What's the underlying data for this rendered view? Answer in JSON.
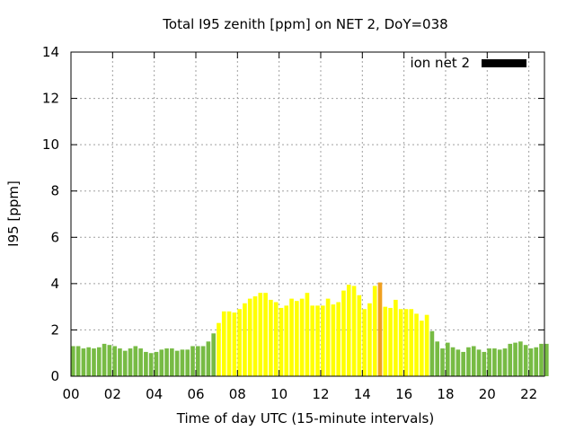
{
  "chart_data": {
    "type": "bar",
    "title": "Total I95 zenith [ppm] on NET 2, DoY=038",
    "xlabel": "Time of day UTC (15-minute intervals)",
    "ylabel": "I95 [ppm]",
    "xlim": [
      0,
      22.75
    ],
    "ylim": [
      0,
      14
    ],
    "x_ticks": [
      "00",
      "02",
      "04",
      "06",
      "08",
      "10",
      "12",
      "14",
      "16",
      "18",
      "20",
      "22"
    ],
    "y_ticks": [
      "0",
      "2",
      "4",
      "6",
      "8",
      "10",
      "12",
      "14"
    ],
    "grid": true,
    "legend": {
      "label": "ion net 2",
      "position": "top-right",
      "color": "#000000"
    },
    "colors": {
      "low": "#77bb44",
      "medium": "#ffff00",
      "high": "#f0a020"
    },
    "interval_hours": 0.25,
    "values": [
      1.3,
      1.3,
      1.2,
      1.25,
      1.2,
      1.25,
      1.4,
      1.35,
      1.3,
      1.2,
      1.1,
      1.2,
      1.3,
      1.2,
      1.05,
      1.0,
      1.05,
      1.15,
      1.2,
      1.2,
      1.1,
      1.15,
      1.15,
      1.3,
      1.3,
      1.3,
      1.5,
      1.85,
      2.3,
      2.8,
      2.8,
      2.75,
      2.9,
      3.15,
      3.35,
      3.45,
      3.6,
      3.6,
      3.3,
      3.2,
      2.95,
      3.05,
      3.35,
      3.25,
      3.35,
      3.6,
      3.05,
      3.05,
      3.05,
      3.35,
      3.1,
      3.2,
      3.7,
      3.95,
      3.9,
      3.5,
      2.9,
      3.15,
      3.9,
      4.05,
      3.0,
      2.95,
      3.3,
      2.9,
      2.9,
      2.9,
      2.7,
      2.4,
      2.65,
      1.95,
      1.5,
      1.2,
      1.45,
      1.25,
      1.15,
      1.05,
      1.25,
      1.3,
      1.15,
      1.05,
      1.2,
      1.2,
      1.15,
      1.2,
      1.4,
      1.45,
      1.5,
      1.35,
      1.2,
      1.25,
      1.4,
      1.4
    ],
    "levels": [
      "low",
      "low",
      "low",
      "low",
      "low",
      "low",
      "low",
      "low",
      "low",
      "low",
      "low",
      "low",
      "low",
      "low",
      "low",
      "low",
      "low",
      "low",
      "low",
      "low",
      "low",
      "low",
      "low",
      "low",
      "low",
      "low",
      "low",
      "low",
      "medium",
      "medium",
      "medium",
      "medium",
      "medium",
      "medium",
      "medium",
      "medium",
      "medium",
      "medium",
      "medium",
      "medium",
      "medium",
      "medium",
      "medium",
      "medium",
      "medium",
      "medium",
      "medium",
      "medium",
      "medium",
      "medium",
      "medium",
      "medium",
      "medium",
      "medium",
      "medium",
      "medium",
      "medium",
      "medium",
      "medium",
      "high",
      "medium",
      "medium",
      "medium",
      "medium",
      "medium",
      "medium",
      "medium",
      "medium",
      "medium",
      "low",
      "low",
      "low",
      "low",
      "low",
      "low",
      "low",
      "low",
      "low",
      "low",
      "low",
      "low",
      "low",
      "low",
      "low",
      "low",
      "low",
      "low",
      "low",
      "low",
      "low",
      "low",
      "low"
    ]
  }
}
